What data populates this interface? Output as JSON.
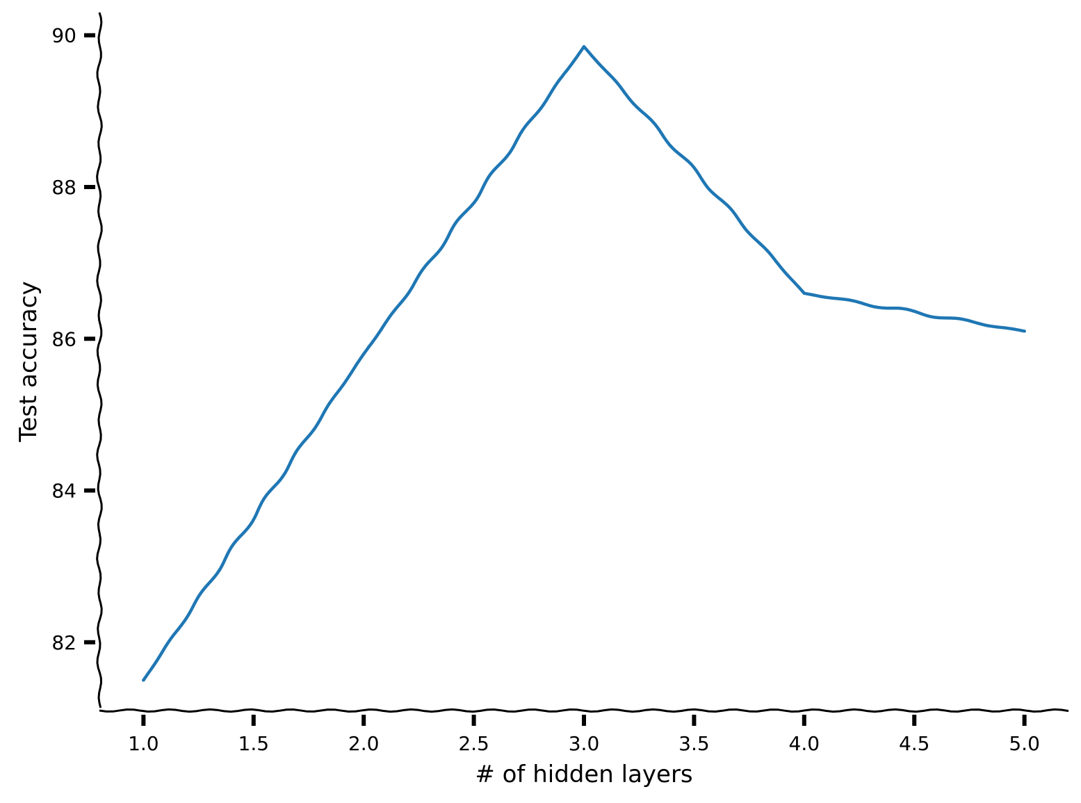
{
  "chart_data": {
    "type": "line",
    "title": "",
    "xlabel": "# of hidden layers",
    "ylabel": "Test accuracy",
    "xlim": [
      0.8,
      5.2
    ],
    "ylim": [
      81.1,
      90.3
    ],
    "xticks": [
      1.0,
      1.5,
      2.0,
      2.5,
      3.0,
      3.5,
      4.0,
      4.5,
      5.0
    ],
    "xtick_labels": [
      "1.0",
      "1.5",
      "2.0",
      "2.5",
      "3.0",
      "3.5",
      "4.0",
      "4.5",
      "5.0"
    ],
    "yticks": [
      82,
      84,
      86,
      88,
      90
    ],
    "ytick_labels": [
      "82",
      "84",
      "86",
      "88",
      "90"
    ],
    "grid": false,
    "legend": "none",
    "style": "xkcd",
    "series": [
      {
        "x": [
          1,
          2,
          3,
          4,
          5
        ],
        "y": [
          81.5,
          85.8,
          89.85,
          86.6,
          86.1
        ],
        "color": "#1f77b4"
      }
    ]
  }
}
